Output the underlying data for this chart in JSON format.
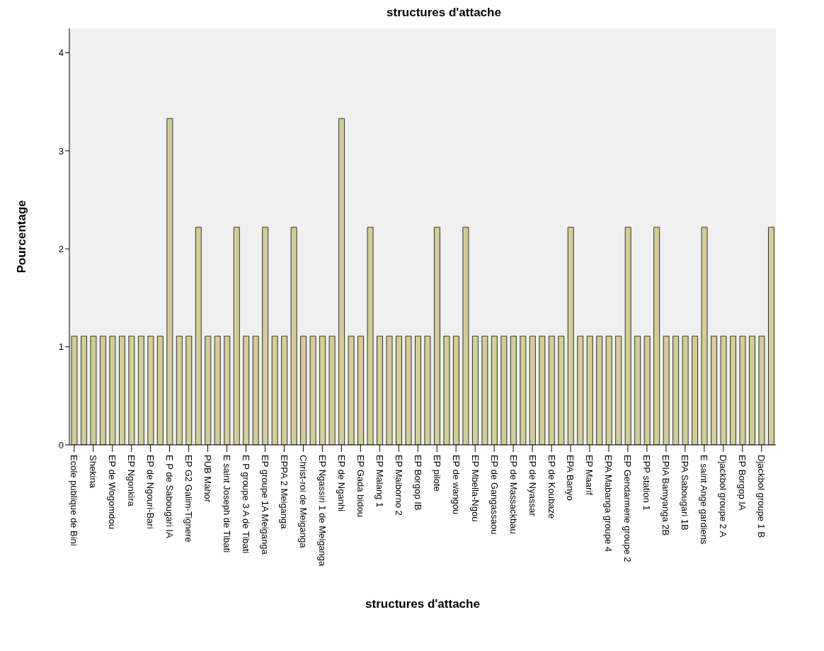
{
  "chart_data": {
    "type": "bar",
    "title": "structures d'attache",
    "xlabel": "structures d'attache",
    "ylabel": "Pourcentage",
    "categories": [
      "Ecole publique de Bini",
      null,
      "Shekina",
      null,
      "EP de Wogomdou",
      null,
      "EP Ngonkira",
      null,
      "EP de Ngouri-Bari",
      null,
      "E P de Sabougari IA",
      null,
      "EP G2 Galim-Tignere",
      null,
      "PUB Mahor",
      null,
      "E saint Joseph de Tibati",
      null,
      "E P groupe 3 A de Tibati",
      null,
      "EP groupe 1A Meiganga",
      null,
      "EPPA 2 Meiganga",
      null,
      "Christ-roi de Meiganga",
      null,
      "EP Ngassiri 1 de Meiganga",
      null,
      "EP de Nganhi",
      null,
      "EP Gada bidou",
      null,
      "EP Malang 1",
      null,
      "EP Maiborno 2",
      null,
      "EP Borgop IB",
      null,
      "EP pilote",
      null,
      "EP de wangou",
      null,
      "EP Mbella-Ngou",
      null,
      "EP de Gangassaou",
      null,
      "EP de Massackbau",
      null,
      "EP de Nyassar",
      null,
      "EP de Koubaze",
      null,
      "EPA Banyo",
      null,
      "EP Maarif",
      null,
      "EPA Mabanga groupe 4",
      null,
      "EP Gendarmerie groupe 2",
      null,
      "EPP station 1",
      null,
      "EPIA Bamyanga 2B",
      null,
      "EPA Sabougari 1B",
      null,
      "E saint Ange gardiens",
      null,
      "Djackbol groupe 2 A",
      null,
      "EP Borgop IA",
      null,
      "Djackbol groupe 1 B",
      null
    ],
    "values": [
      1.11,
      1.11,
      1.11,
      1.11,
      1.11,
      1.11,
      1.11,
      1.11,
      1.11,
      1.11,
      3.33,
      1.11,
      1.11,
      2.22,
      1.11,
      1.11,
      1.11,
      2.22,
      1.11,
      1.11,
      2.22,
      1.11,
      1.11,
      2.22,
      1.11,
      1.11,
      1.11,
      1.11,
      3.33,
      1.11,
      1.11,
      2.22,
      1.11,
      1.11,
      1.11,
      1.11,
      1.11,
      1.11,
      2.22,
      1.11,
      1.11,
      2.22,
      1.11,
      1.11,
      1.11,
      1.11,
      1.11,
      1.11,
      1.11,
      1.11,
      1.11,
      1.11,
      2.22,
      1.11,
      1.11,
      1.11,
      1.11,
      1.11,
      2.22,
      1.11,
      1.11,
      2.22,
      1.11,
      1.11,
      1.11,
      1.11,
      2.22,
      1.11,
      1.11,
      1.11,
      1.11,
      1.11,
      1.11,
      2.22
    ],
    "color": "#d3ce97",
    "ylim": [
      0,
      4.25
    ],
    "yticks": [
      0,
      1,
      2,
      3,
      4
    ],
    "grid": false,
    "legend": false
  }
}
